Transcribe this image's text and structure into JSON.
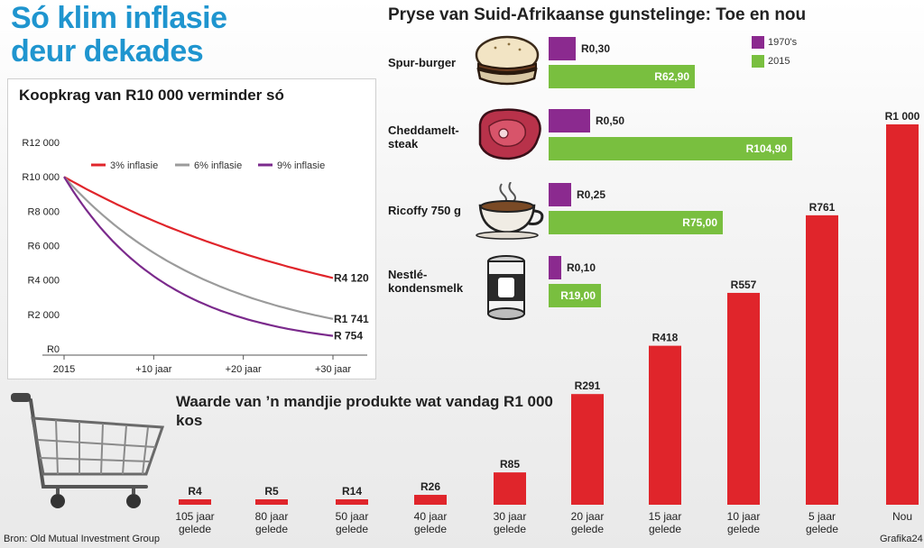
{
  "header": {
    "title": "Só klim inflasie\ndeur dekades"
  },
  "colors": {
    "title_blue": "#1f95cf",
    "red": "#e0252b",
    "grey": "#9b9b9b",
    "purple": "#7b2a8c",
    "bar_purple": "#8b2a8f",
    "bar_green": "#79bf3f"
  },
  "chart_data": [
    {
      "type": "line",
      "title": "Koopkrag van R10 000 verminder só",
      "x_tick_labels": [
        "2015",
        "+10 jaar",
        "+20 jaar",
        "+30 jaar"
      ],
      "x_range": [
        0,
        30
      ],
      "y_tick_labels": [
        "R0",
        "R2 000",
        "R4 000",
        "R6 000",
        "R8 000",
        "R10 000",
        "R12 000"
      ],
      "ylim": [
        0,
        12000
      ],
      "series": [
        {
          "name": "3% inflasie",
          "color": "#e0252b",
          "start": 10000,
          "end": 4120,
          "end_label": "R4 120"
        },
        {
          "name": "6% inflasie",
          "color": "#9b9b9b",
          "start": 10000,
          "end": 1741,
          "end_label": "R1 741"
        },
        {
          "name": "9% inflasie",
          "color": "#7b2a8c",
          "start": 10000,
          "end": 754,
          "end_label": "R  754"
        }
      ]
    },
    {
      "type": "bar",
      "orientation": "horizontal",
      "title": "Pryse van Suid-Afrikaanse gunstelinge: Toe en nou",
      "legend": [
        {
          "name": "1970's",
          "color": "#8b2a8f"
        },
        {
          "name": "2015",
          "color": "#79bf3f"
        }
      ],
      "categories": [
        "Spur-burger",
        "Cheddamelt-\nsteak",
        "Ricoffy 750 g",
        "Nestlé-\nkondensmelk"
      ],
      "series": [
        {
          "name": "1970's",
          "values": [
            0.3,
            0.5,
            0.25,
            0.1
          ],
          "labels": [
            "R0,30",
            "R0,50",
            "R0,25",
            "R0,10"
          ]
        },
        {
          "name": "2015",
          "values": [
            62.9,
            104.9,
            75.0,
            19.0
          ],
          "labels": [
            "R62,90",
            "R104,90",
            "R75,00",
            "R19,00"
          ]
        }
      ]
    },
    {
      "type": "bar",
      "title": "Waarde van  ’n mandjie produkte wat vandag R1 000 kos",
      "categories": [
        "105 jaar\ngelede",
        "80 jaar\ngelede",
        "50 jaar\ngelede",
        "40 jaar\ngelede",
        "30 jaar\ngelede",
        "20 jaar\ngelede",
        "15 jaar\ngelede",
        "10 jaar\ngelede",
        "5 jaar\ngelede",
        "Nou"
      ],
      "values": [
        4,
        5,
        14,
        26,
        85,
        291,
        418,
        557,
        761,
        1000
      ],
      "labels": [
        "R4",
        "R5",
        "R14",
        "R26",
        "R85",
        "R291",
        "R418",
        "R557",
        "R761",
        "R1 000"
      ],
      "ylim": [
        0,
        1000
      ]
    }
  ],
  "footer": {
    "source": "Bron: Old Mutual Investment Group",
    "credit": "Grafika24"
  }
}
